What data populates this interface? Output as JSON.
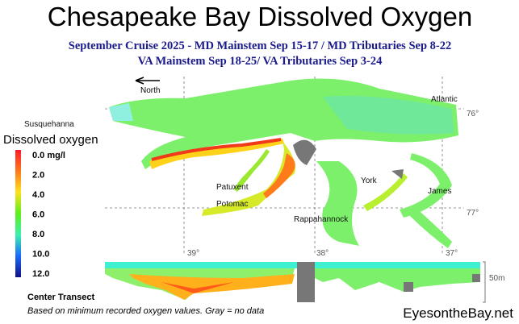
{
  "header": {
    "title": "Chesapeake Bay Dissolved Oxygen",
    "subtitle_lines": [
      "September Cruise 2025 - MD Mainstem Sep 15-17 / MD Tributaries Sep 8-22",
      "VA Mainstem Sep 18-25/ VA Tributaries Sep 3-24"
    ]
  },
  "map": {
    "north": "North",
    "places": [
      "Susquehanna",
      "Atlantic",
      "Patuxent",
      "Potomac",
      "Rappahannock",
      "York",
      "James"
    ],
    "longitude_labels": [
      "76°",
      "77°"
    ],
    "latitude_labels": [
      "39°",
      "38°",
      "37°"
    ]
  },
  "legend": {
    "title": "Dissolved oxygen",
    "labels": [
      "0.0 mg/l",
      "2.0",
      "4.0",
      "6.0",
      "8.0",
      "10.0",
      "12.0"
    ]
  },
  "transect": {
    "title": "Center Transect",
    "scale": "50m"
  },
  "footer": {
    "note": "Based on minimum recorded oxygen values. Gray = no data",
    "credit": "EyesontheBay.net"
  }
}
